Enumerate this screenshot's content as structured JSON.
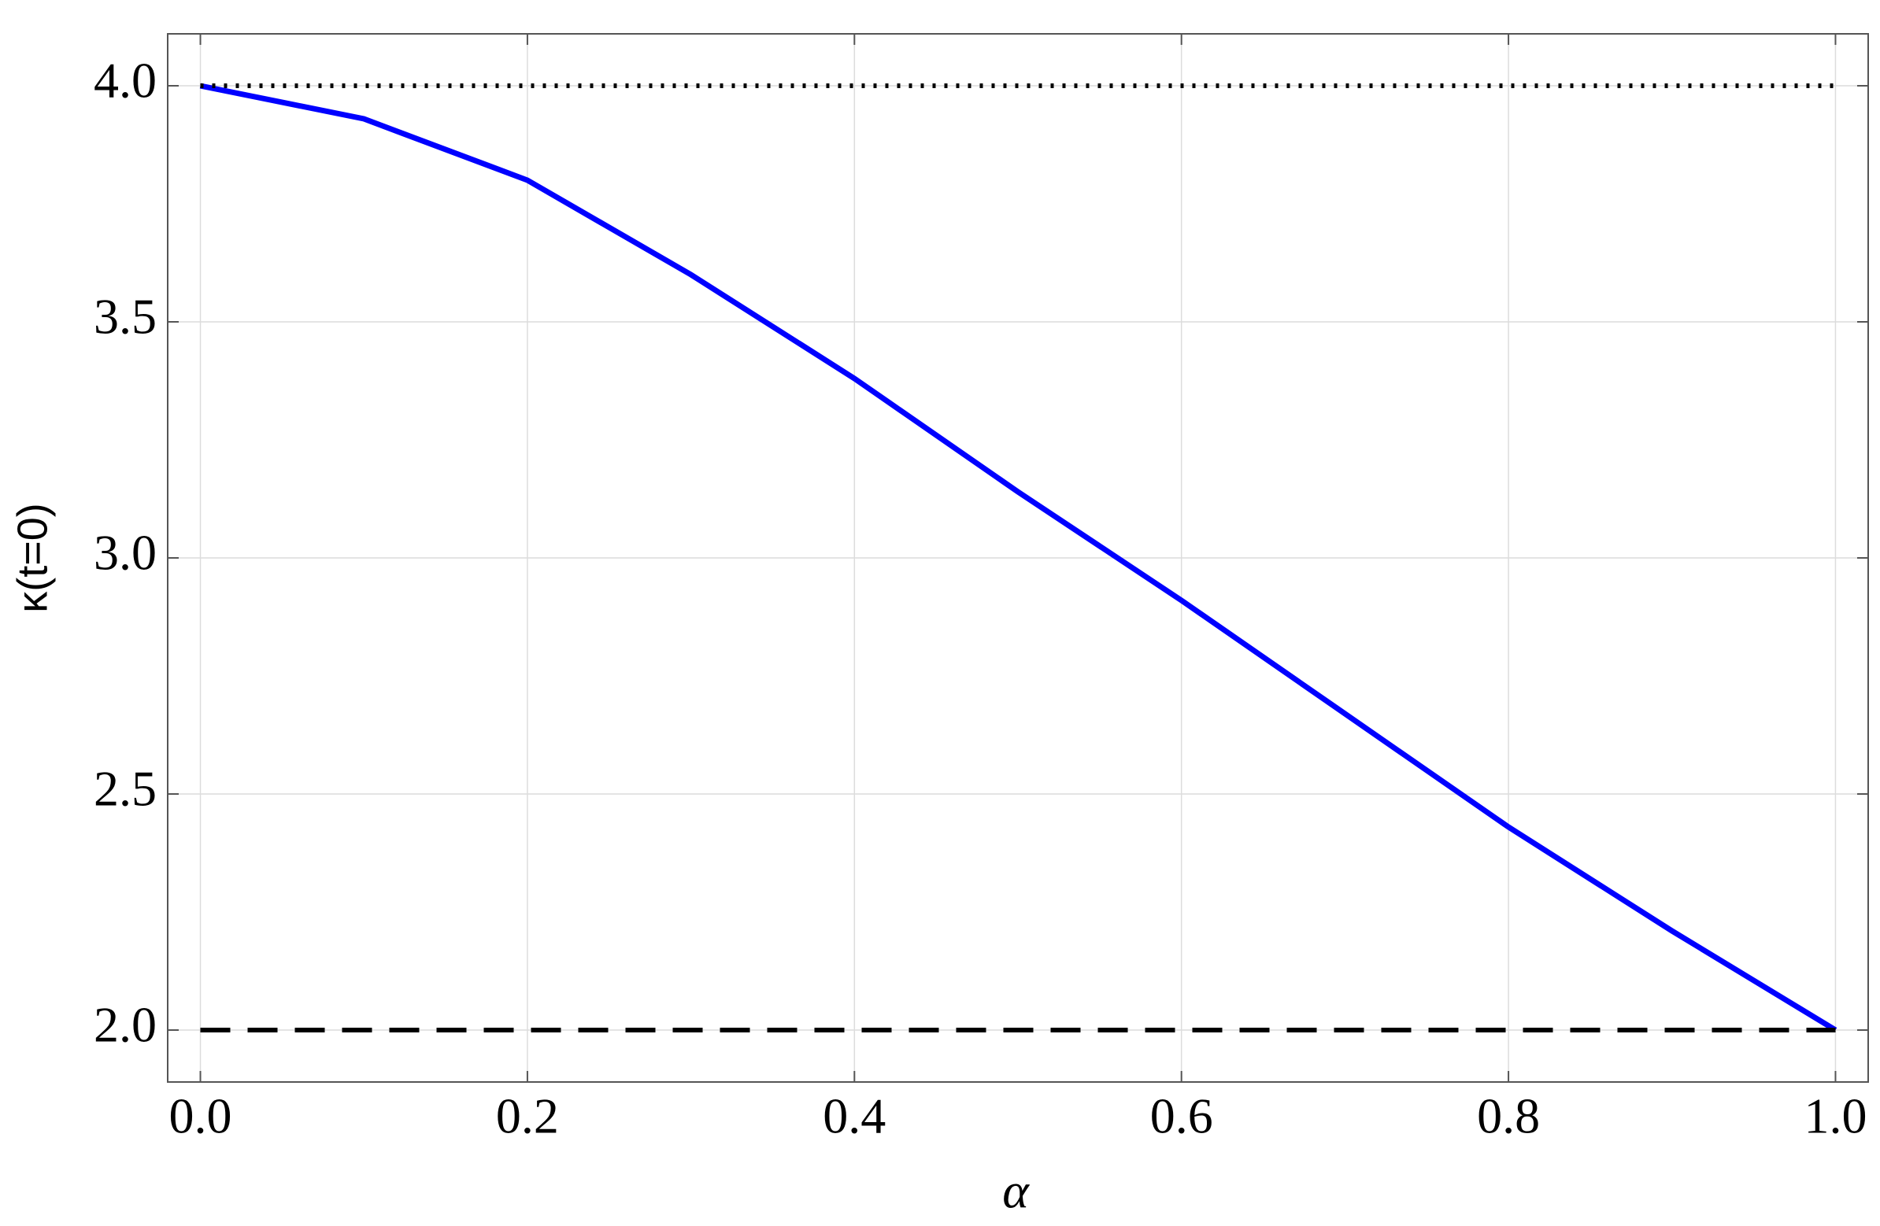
{
  "chart_data": {
    "type": "line",
    "x_label": "α",
    "y_label": "κ(t=0)",
    "x": [
      0,
      0.1,
      0.2,
      0.3,
      0.4,
      0.5,
      0.6,
      0.7,
      0.8,
      0.9,
      1.0
    ],
    "series": [
      {
        "color": "#0000ff",
        "style": "solid",
        "values": [
          4.0,
          3.93,
          3.8,
          3.6,
          3.38,
          3.14,
          2.91,
          2.67,
          2.43,
          2.21,
          2.0
        ]
      },
      {
        "color": "#000000",
        "style": "dotted",
        "values": [
          4,
          4,
          4,
          4,
          4,
          4,
          4,
          4,
          4,
          4,
          4
        ]
      },
      {
        "color": "#000000",
        "style": "dashed",
        "values": [
          2,
          2,
          2,
          2,
          2,
          2,
          2,
          2,
          2,
          2,
          2
        ]
      }
    ],
    "xlim": [
      -0.02,
      1.02
    ],
    "ylim": [
      1.89,
      4.11
    ],
    "xticks": [
      {
        "value": 0,
        "label": "0.0"
      },
      {
        "value": 0.2,
        "label": "0.2"
      },
      {
        "value": 0.4,
        "label": "0.4"
      },
      {
        "value": 0.6,
        "label": "0.6"
      },
      {
        "value": 0.8,
        "label": "0.8"
      },
      {
        "value": 1,
        "label": "1.0"
      }
    ],
    "yticks": [
      {
        "value": 2,
        "label": "2.0"
      },
      {
        "value": 2.5,
        "label": "2.5"
      },
      {
        "value": 3,
        "label": "3.0"
      },
      {
        "value": 3.5,
        "label": "3.5"
      },
      {
        "value": 4,
        "label": "4.0"
      }
    ],
    "grid": true
  }
}
